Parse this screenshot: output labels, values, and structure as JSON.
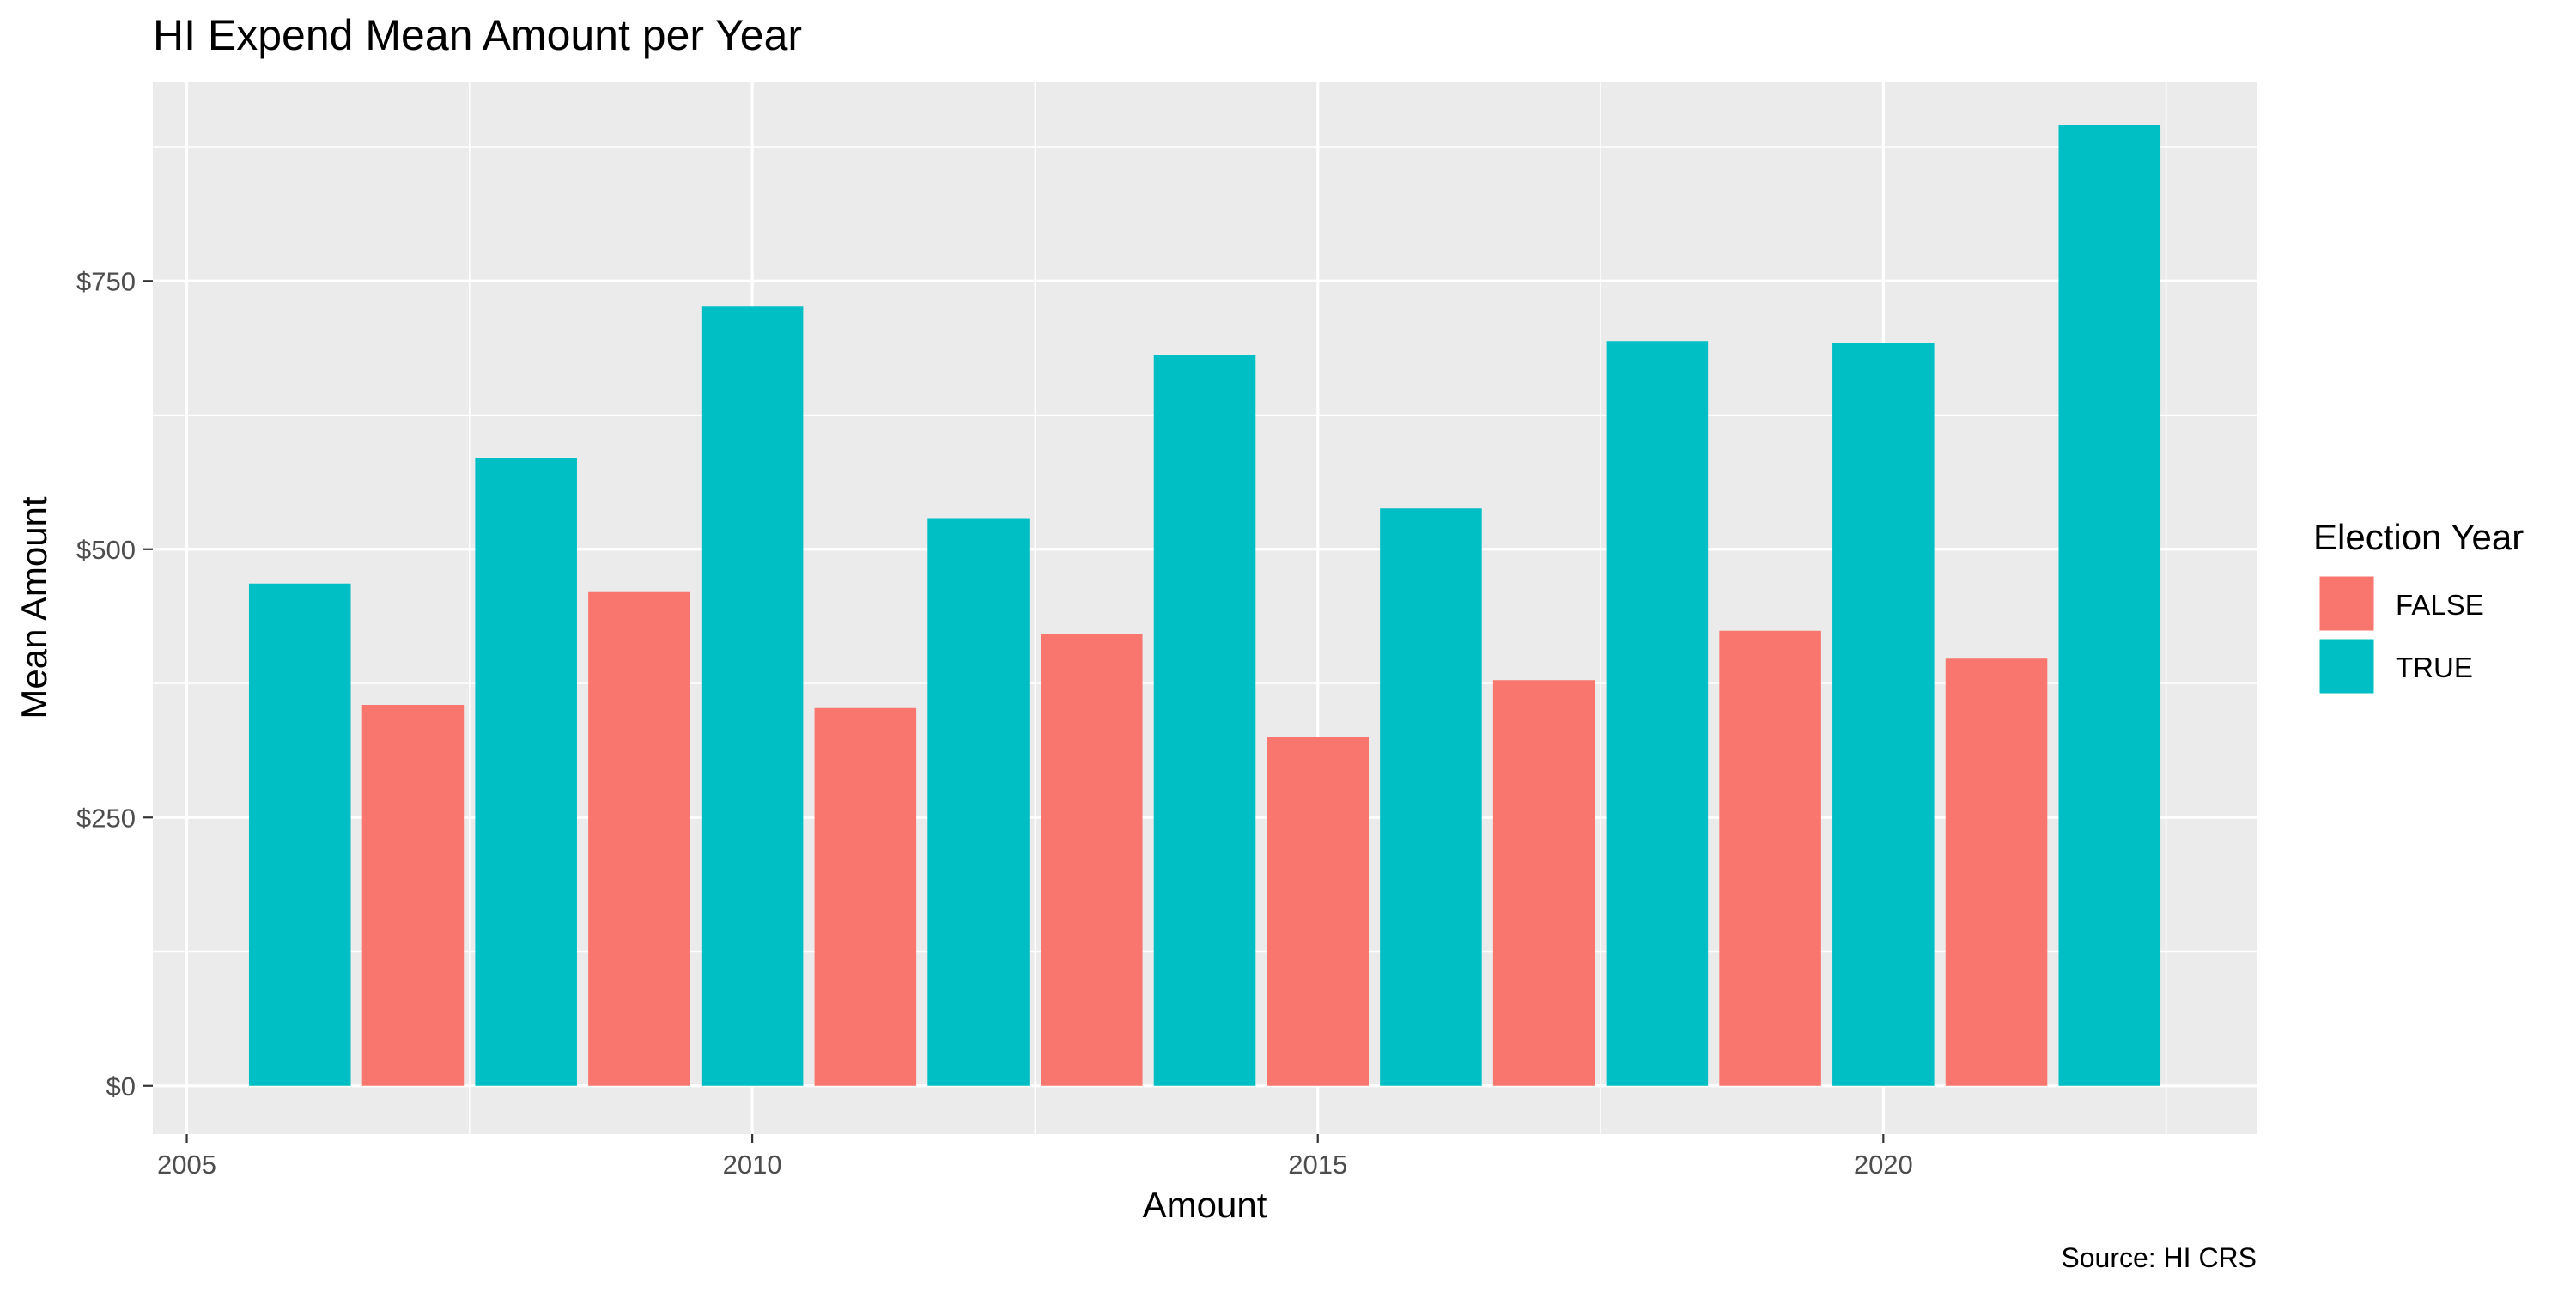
{
  "chart_data": {
    "type": "bar",
    "title": "HI Expend Mean Amount per Year",
    "xlabel": "Amount",
    "ylabel": "Mean Amount",
    "caption": "Source: HI CRS",
    "xlim": [
      2004.7,
      2023.3
    ],
    "ylim": [
      -45,
      935
    ],
    "x_ticks": [
      2005,
      2010,
      2015,
      2020
    ],
    "x_tick_labels": [
      "2005",
      "2010",
      "2015",
      "2020"
    ],
    "y_ticks": [
      0,
      250,
      500,
      750
    ],
    "y_tick_labels": [
      "$0",
      "$250",
      "$500",
      "$750"
    ],
    "grid": true,
    "legend": {
      "title": "Election Year",
      "placement": "right",
      "entries": [
        {
          "label": "FALSE",
          "color": "#F8766D"
        },
        {
          "label": "TRUE",
          "color": "#00BFC4"
        }
      ]
    },
    "colors": {
      "FALSE": "#F8766D",
      "TRUE": "#00BFC4"
    },
    "bar_width_years": 0.9,
    "bars": [
      {
        "x": 2006,
        "value": 468,
        "group": "TRUE"
      },
      {
        "x": 2007,
        "value": 355,
        "group": "FALSE"
      },
      {
        "x": 2008,
        "value": 585,
        "group": "TRUE"
      },
      {
        "x": 2009,
        "value": 460,
        "group": "FALSE"
      },
      {
        "x": 2010,
        "value": 726,
        "group": "TRUE"
      },
      {
        "x": 2011,
        "value": 352,
        "group": "FALSE"
      },
      {
        "x": 2012,
        "value": 529,
        "group": "TRUE"
      },
      {
        "x": 2013,
        "value": 421,
        "group": "FALSE"
      },
      {
        "x": 2014,
        "value": 681,
        "group": "TRUE"
      },
      {
        "x": 2015,
        "value": 325,
        "group": "FALSE"
      },
      {
        "x": 2016,
        "value": 538,
        "group": "TRUE"
      },
      {
        "x": 2017,
        "value": 378,
        "group": "FALSE"
      },
      {
        "x": 2018,
        "value": 694,
        "group": "TRUE"
      },
      {
        "x": 2019,
        "value": 424,
        "group": "FALSE"
      },
      {
        "x": 2020,
        "value": 692,
        "group": "TRUE"
      },
      {
        "x": 2021,
        "value": 398,
        "group": "FALSE"
      },
      {
        "x": 2022,
        "value": 895,
        "group": "TRUE"
      }
    ]
  }
}
